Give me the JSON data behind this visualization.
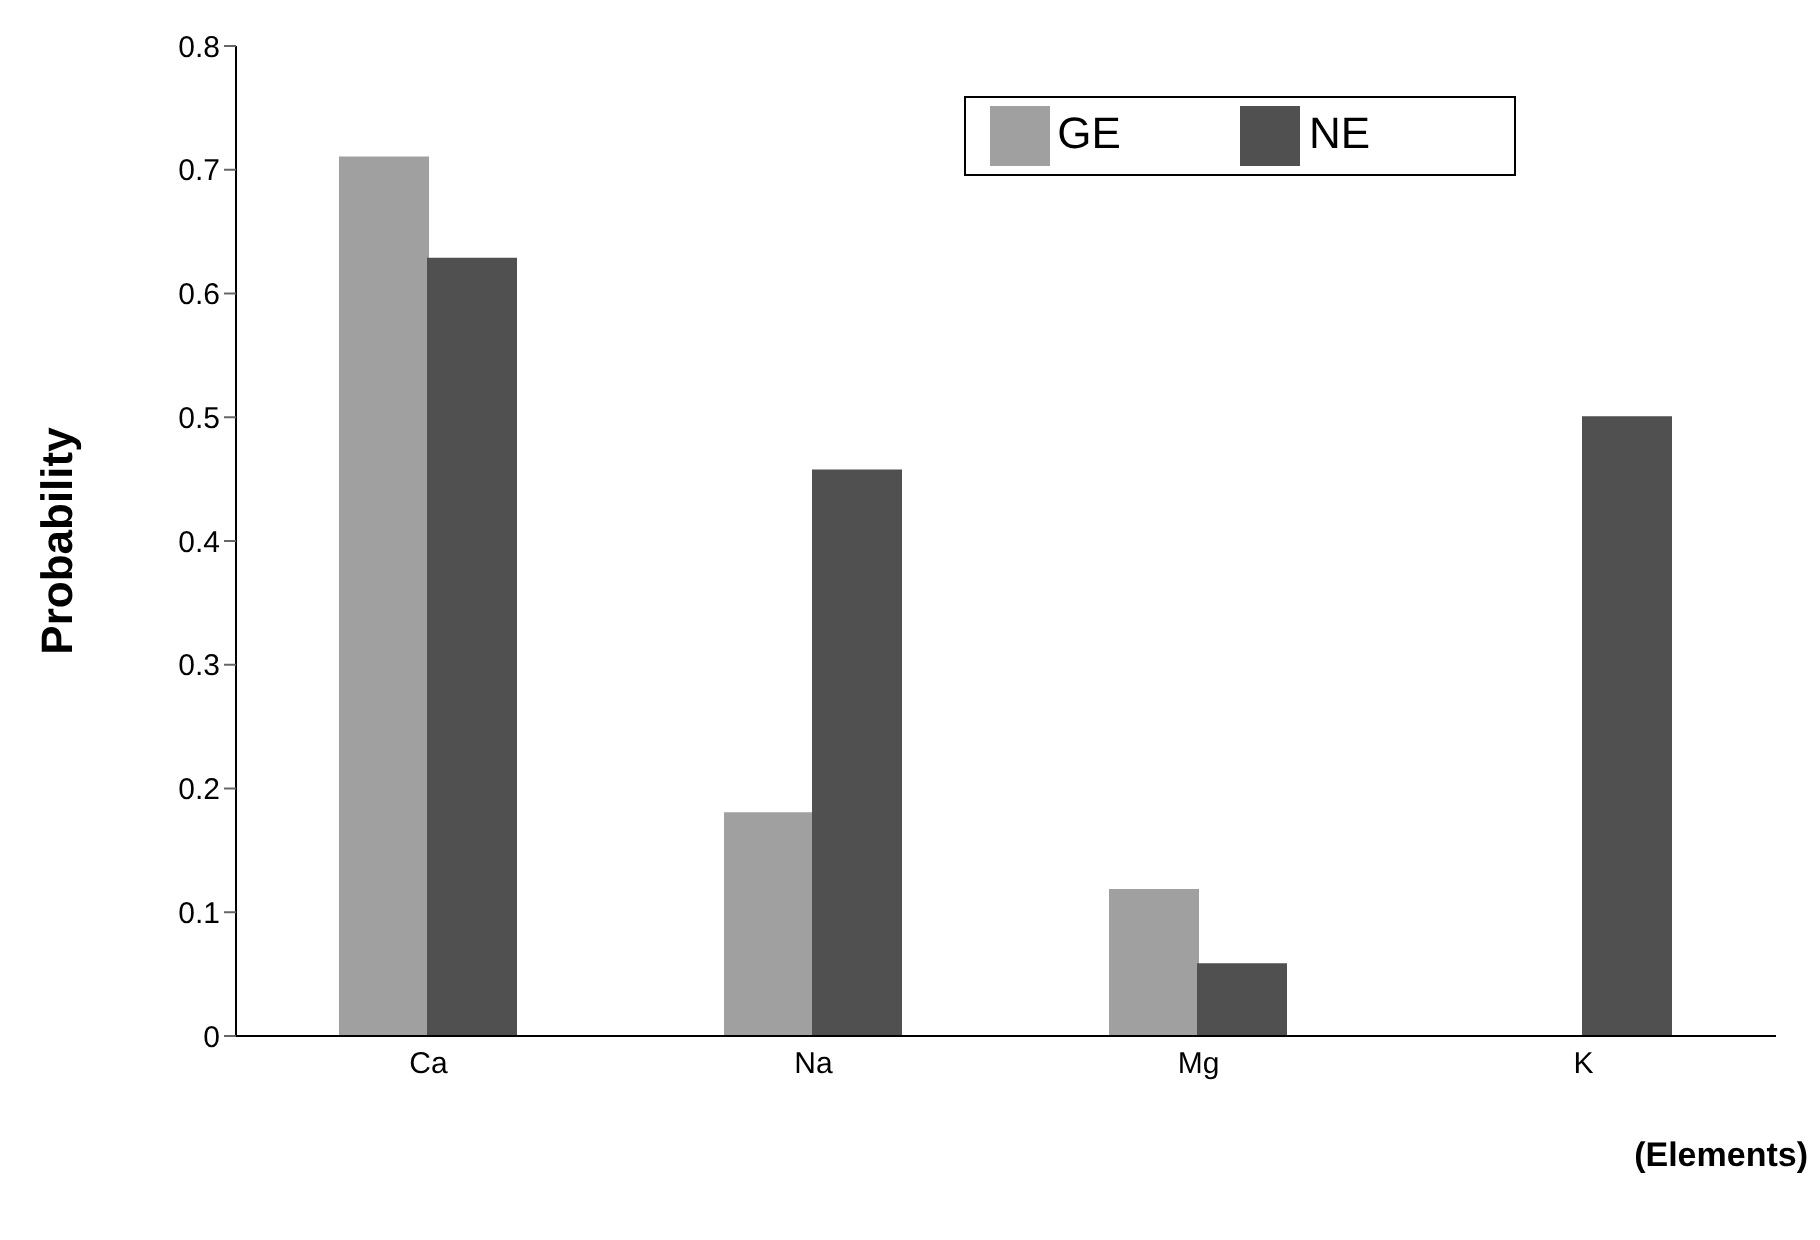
{
  "chart_data": {
    "type": "bar",
    "xlabel": "(Elements)",
    "ylabel": "Probability",
    "categories": [
      "Ca",
      "Na",
      "Mg",
      "K"
    ],
    "series": [
      {
        "name": "GE",
        "color": "#a0a0a0",
        "values": [
          0.71,
          0.18,
          0.118,
          0
        ]
      },
      {
        "name": "NE",
        "color": "#505050",
        "values": [
          0.628,
          0.457,
          0.058,
          0.5
        ]
      }
    ],
    "ylim": [
      0,
      0.8
    ],
    "yticks": [
      0,
      0.1,
      0.2,
      0.3,
      0.4,
      0.5,
      0.6,
      0.7,
      0.8
    ],
    "grid": false,
    "legend": "top right"
  }
}
